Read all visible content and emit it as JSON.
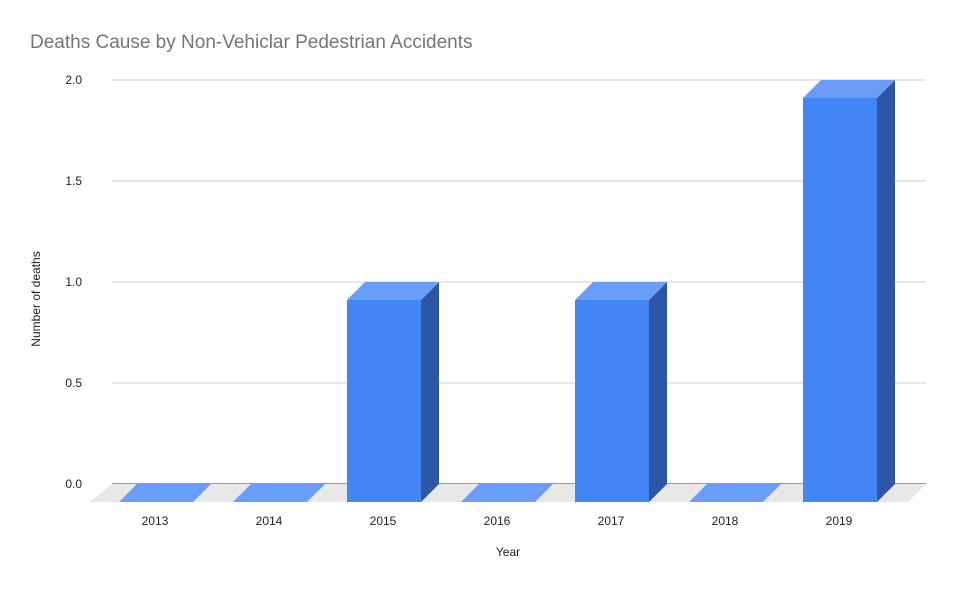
{
  "chart_data": {
    "type": "bar",
    "title": "Deaths Cause by Non-Vehiclar Pedestrian Accidents",
    "xlabel": "Year",
    "ylabel": "Number of deaths",
    "categories": [
      "2013",
      "2014",
      "2015",
      "2016",
      "2017",
      "2018",
      "2019"
    ],
    "values": [
      0,
      0,
      1,
      0,
      1,
      0,
      2
    ],
    "ylim": [
      0,
      2
    ],
    "yticks": [
      0,
      0.5,
      1,
      1.5,
      2
    ],
    "ytick_labels": [
      "0.0",
      "0.5",
      "1.0",
      "1.5",
      "2.0"
    ],
    "grid": true,
    "style": "3d",
    "colors": {
      "bar_front": "#4285f4",
      "bar_top": "#6a9df7",
      "bar_side": "#2c56a8",
      "floor": "#e8e8e8",
      "grid": "#cccccc",
      "axis": "#333333"
    }
  }
}
